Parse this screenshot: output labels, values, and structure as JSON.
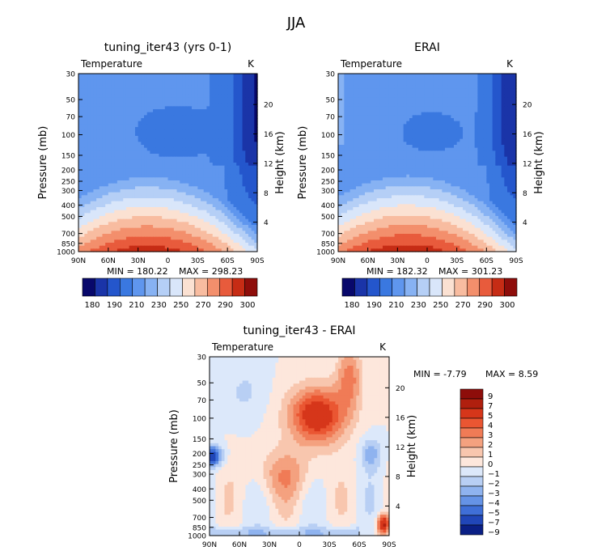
{
  "figure_title": "JJA",
  "chart_data": [
    {
      "type": "heatmap",
      "title": "tuning_iter43 (yrs 0-1)",
      "left_label": "Temperature",
      "units": "K",
      "xlabel": "",
      "ylabel": "Pressure (mb)",
      "right_ylabel": "Height (km)",
      "x_ticks": [
        "90N",
        "60N",
        "30N",
        "0",
        "30S",
        "60S",
        "90S"
      ],
      "y_ticks": [
        "30",
        "50",
        "70",
        "100",
        "150",
        "200",
        "250",
        "300",
        "400",
        "500",
        "700",
        "850",
        "1000"
      ],
      "right_ticks": [
        "20",
        "16",
        "12",
        "8",
        "4"
      ],
      "y_scale": "log",
      "min_label": "MIN = 180.22",
      "max_label": "MAX = 298.23",
      "colorbar_levels": [
        180,
        190,
        200,
        210,
        220,
        230,
        240,
        250,
        260,
        270,
        280,
        290,
        300
      ],
      "colorbar_labels": [
        "180",
        "190",
        "210",
        "230",
        "250",
        "270",
        "290",
        "300"
      ]
    },
    {
      "type": "heatmap",
      "title": "ERAI",
      "left_label": "Temperature",
      "units": "K",
      "xlabel": "",
      "ylabel": "Pressure (mb)",
      "right_ylabel": "Height (km)",
      "x_ticks": [
        "90N",
        "60N",
        "30N",
        "0",
        "30S",
        "60S",
        "90S"
      ],
      "y_ticks": [
        "30",
        "50",
        "70",
        "100",
        "150",
        "200",
        "250",
        "300",
        "400",
        "500",
        "700",
        "850",
        "1000"
      ],
      "right_ticks": [
        "20",
        "16",
        "12",
        "8",
        "4"
      ],
      "y_scale": "log",
      "min_label": "MIN = 182.32",
      "max_label": "MAX = 301.23",
      "colorbar_levels": [
        180,
        190,
        200,
        210,
        220,
        230,
        240,
        250,
        260,
        270,
        280,
        290,
        300
      ],
      "colorbar_labels": [
        "180",
        "190",
        "210",
        "230",
        "250",
        "270",
        "290",
        "300"
      ]
    },
    {
      "type": "heatmap",
      "title": "tuning_iter43 - ERAI",
      "left_label": "Temperature",
      "units": "K",
      "xlabel": "",
      "ylabel": "Pressure (mb)",
      "right_ylabel": "Height (km)",
      "x_ticks": [
        "90N",
        "60N",
        "30N",
        "0",
        "30S",
        "60S",
        "90S"
      ],
      "y_ticks": [
        "30",
        "50",
        "70",
        "100",
        "150",
        "200",
        "250",
        "300",
        "400",
        "500",
        "700",
        "850",
        "1000"
      ],
      "right_ticks": [
        "20",
        "16",
        "12",
        "8",
        "4"
      ],
      "y_scale": "log",
      "min_label": "MIN = -7.79",
      "max_label": "MAX = 8.59",
      "colorbar_levels": [
        9,
        7,
        5,
        4,
        3,
        2,
        1,
        0,
        -1,
        -2,
        -3,
        -4,
        -5,
        -7,
        -9
      ],
      "colorbar_labels": [
        "9",
        "7",
        "5",
        "4",
        "3",
        "2",
        "1",
        "0",
        "−1",
        "−2",
        "−3",
        "−4",
        "−5",
        "−7",
        "−9"
      ]
    }
  ],
  "colors": {
    "abs_scale": [
      "#08086b",
      "#1a34a8",
      "#2456cc",
      "#3a78e0",
      "#5f96ee",
      "#87b2f3",
      "#b5cff6",
      "#d9e6fa",
      "#fbe1d2",
      "#f8bca0",
      "#f38f6c",
      "#e85b3c",
      "#c62c15",
      "#8e0d0a"
    ],
    "diff_scale": [
      "#8e0d0a",
      "#b01f0e",
      "#d6361a",
      "#ea5632",
      "#f07b56",
      "#f4a17f",
      "#f8c6ae",
      "#fde7dc",
      "#dce8fa",
      "#b8cff4",
      "#8fb3ef",
      "#6593e6",
      "#3f6fd7",
      "#2046b8",
      "#0a1f85"
    ]
  }
}
